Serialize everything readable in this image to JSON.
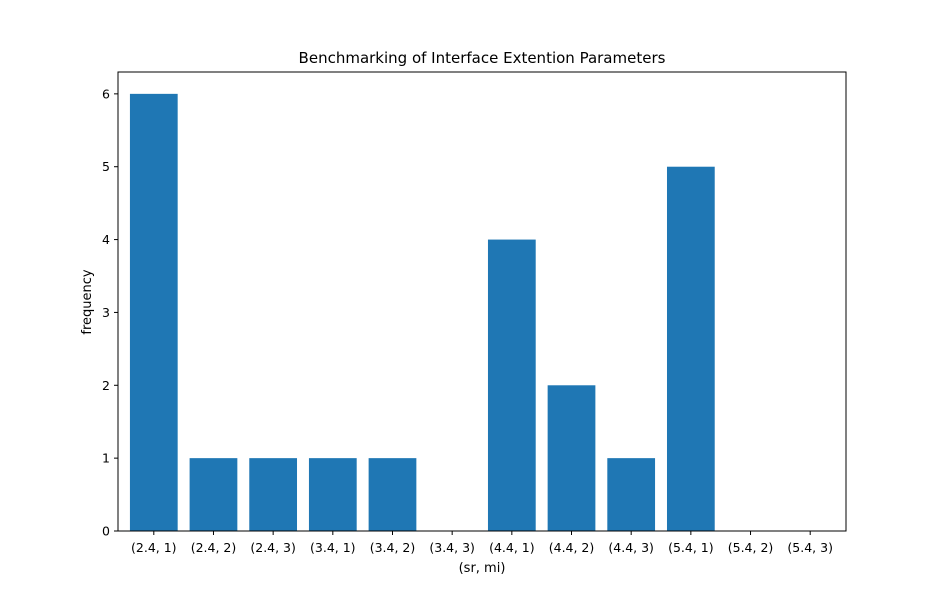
{
  "chart_data": {
    "type": "bar",
    "title": "Benchmarking of Interface Extention Parameters",
    "xlabel": "(sr, mi)",
    "ylabel": "frequency",
    "categories": [
      "(2.4, 1)",
      "(2.4, 2)",
      "(2.4, 3)",
      "(3.4, 1)",
      "(3.4, 2)",
      "(3.4, 3)",
      "(4.4, 1)",
      "(4.4, 2)",
      "(4.4, 3)",
      "(5.4, 1)",
      "(5.4, 2)",
      "(5.4, 3)"
    ],
    "values": [
      6,
      1,
      1,
      1,
      1,
      0,
      4,
      2,
      1,
      5,
      0,
      0
    ],
    "ylim": [
      0,
      6.3
    ],
    "yticks": [
      0,
      1,
      2,
      3,
      4,
      5,
      6
    ],
    "grid": false,
    "bar_color": "#1f77b4"
  }
}
